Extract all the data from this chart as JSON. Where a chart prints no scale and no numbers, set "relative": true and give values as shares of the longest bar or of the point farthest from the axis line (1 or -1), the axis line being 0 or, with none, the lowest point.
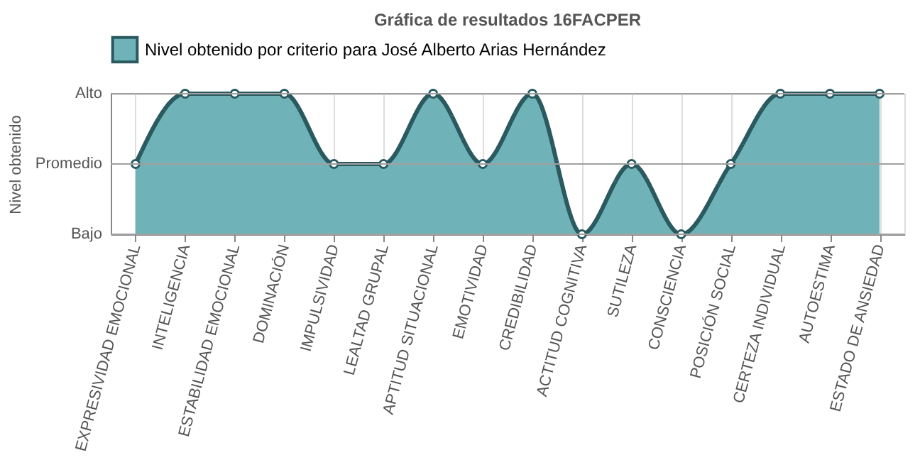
{
  "chart_data": {
    "type": "area",
    "title": "Gráfica de resultados 16FACPER",
    "ylabel": "Nivel obtenido",
    "categories": [
      "EXPRESIVIDAD EMOCIONAL",
      "INTELIGENCIA",
      "ESTABILIDAD EMOCIONAL",
      "DOMINACIÓN",
      "IMPULSIVIDAD",
      "LEALTAD GRUPAL",
      "APTITUD SITUACIONAL",
      "EMOTIVIDAD",
      "CREDIBILIDAD",
      "ACTITUD COGNITIVA",
      "SUTILEZA",
      "CONSCIENCIA",
      "POSICIÓN SOCIAL",
      "CERTEZA INDIVIDUAL",
      "AUTOESTIMA",
      "ESTADO DE ANSIEDAD"
    ],
    "series": [
      {
        "name": "Nivel obtenido por criterio para José Alberto Arias Hernández",
        "color": "#6fb3b8",
        "values": [
          0.5,
          1,
          1,
          1,
          0.5,
          0.5,
          1,
          0.5,
          1,
          0,
          0.5,
          0,
          0.5,
          1,
          1,
          1
        ]
      }
    ],
    "relative": true,
    "ref_lines": [
      {
        "axis": "y",
        "value": 0,
        "label": "Bajo",
        "color": "#a0a0a0"
      },
      {
        "axis": "y",
        "value": 0.5,
        "label": "Promedio",
        "color": "#a0a0a0"
      },
      {
        "axis": "y",
        "value": 1,
        "label": "Alto",
        "color": "#a0a0a0"
      }
    ],
    "grid": "x",
    "legend": "top",
    "marker": "circle",
    "line_style": "solid"
  }
}
